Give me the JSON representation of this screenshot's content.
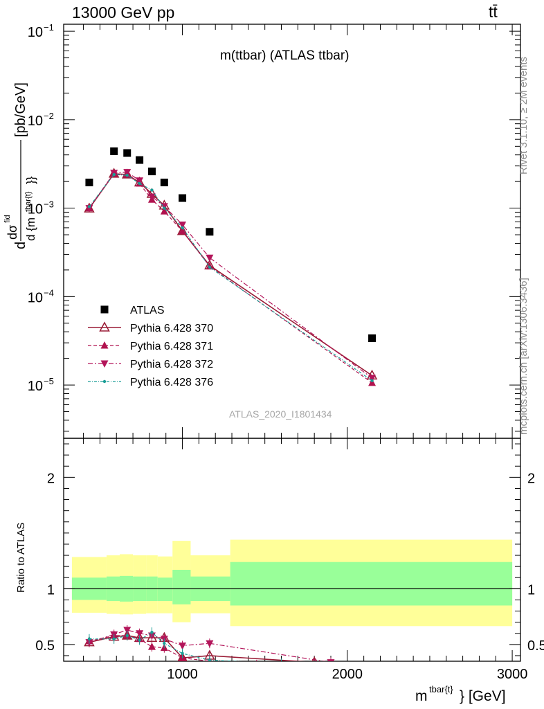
{
  "header": {
    "energy_label": "13000 GeV pp",
    "process_label": "tt̄"
  },
  "side_labels": {
    "rivet": "Rivet 3.1.10, ≥ 2M events",
    "mcplots": "mcplots.cern.ch [arXiv:1306.3436]"
  },
  "colors": {
    "atlas": "#000000",
    "py370": "#9a1c36",
    "py371": "#b0124e",
    "py372": "#b3155a",
    "py376": "#1a9e96",
    "band_inner": "#99ff99",
    "band_outer": "#ffff99"
  },
  "chart_data": [
    {
      "type": "scatter",
      "title": "m(ttbar) (ATLAS ttbar)",
      "analysis_id": "ATLAS_2020_I1801434",
      "ylabel": "dσ^fid / d{m^tbar{t}} [pb/GeV]",
      "yscale": "log",
      "ylim": [
        2.5e-06,
        0.12
      ],
      "xlim": [
        280,
        3050
      ],
      "ytick_labels": [
        "10^-5",
        "10^-4",
        "10^-3",
        "10^-2",
        "10^-1"
      ],
      "legend": {
        "position": "bottom-left",
        "entries": [
          "ATLAS",
          "Pythia 6.428 370",
          "Pythia 6.428 371",
          "Pythia 6.428 372",
          "Pythia 6.428 376"
        ]
      },
      "series": [
        {
          "name": "ATLAS",
          "style": "square",
          "x": [
            435,
            585,
            665,
            740,
            815,
            890,
            1000,
            1165,
            2150
          ],
          "y": [
            0.00195,
            0.0044,
            0.0042,
            0.0035,
            0.0026,
            0.00195,
            0.0013,
            0.00054,
            3.38e-05
          ]
        },
        {
          "name": "Pythia 6.428 370",
          "style": "open-triangle-up",
          "x": [
            435,
            585,
            665,
            740,
            815,
            890,
            1000,
            1165,
            2150
          ],
          "y": [
            0.00099,
            0.00245,
            0.0024,
            0.00195,
            0.00145,
            0.00107,
            0.00055,
            0.000225,
            1.28e-05
          ]
        },
        {
          "name": "Pythia 6.428 371",
          "style": "filled-triangle-up",
          "x": [
            435,
            585,
            665,
            740,
            815,
            890,
            1000,
            1165,
            2150
          ],
          "y": [
            0.001,
            0.00245,
            0.0024,
            0.0019,
            0.00125,
            0.00092,
            0.00055,
            0.00022,
            1.06e-05
          ]
        },
        {
          "name": "Pythia 6.428 372",
          "style": "filled-triangle-down",
          "x": [
            435,
            585,
            665,
            740,
            815,
            890,
            1000,
            1165,
            2150
          ],
          "y": [
            0.001,
            0.0025,
            0.00255,
            0.00205,
            0.00135,
            0.00105,
            0.00065,
            0.000275,
            1.2e-05
          ]
        },
        {
          "name": "Pythia 6.428 376",
          "style": "dot",
          "x": [
            435,
            585,
            665,
            740,
            815,
            890,
            1000,
            1165,
            2150
          ],
          "y": [
            0.00104,
            0.0024,
            0.00235,
            0.0019,
            0.0016,
            0.001,
            0.0006,
            0.000215,
            1.12e-05
          ]
        }
      ]
    },
    {
      "type": "scatter",
      "ylabel": "Ratio to ATLAS",
      "xlabel": "m^tbar{t} [GeV]",
      "ylim": [
        0.35,
        2.35
      ],
      "xlim": [
        280,
        3050
      ],
      "xtick_labels": [
        "1000",
        "2000",
        "3000"
      ],
      "ytick_labels": [
        "0.5",
        "1",
        "2"
      ],
      "bands": [
        {
          "x0": 330,
          "x1": 540,
          "outer": [
            0.785,
            1.285
          ],
          "inner": [
            0.9,
            1.1
          ]
        },
        {
          "x0": 540,
          "x1": 620,
          "outer": [
            0.775,
            1.3
          ],
          "inner": [
            0.89,
            1.11
          ]
        },
        {
          "x0": 620,
          "x1": 700,
          "outer": [
            0.77,
            1.31
          ],
          "inner": [
            0.885,
            1.115
          ]
        },
        {
          "x0": 700,
          "x1": 780,
          "outer": [
            0.775,
            1.3
          ],
          "inner": [
            0.89,
            1.11
          ]
        },
        {
          "x0": 780,
          "x1": 850,
          "outer": [
            0.78,
            1.3
          ],
          "inner": [
            0.89,
            1.11
          ]
        },
        {
          "x0": 850,
          "x1": 940,
          "outer": [
            0.78,
            1.29
          ],
          "inner": [
            0.89,
            1.1
          ]
        },
        {
          "x0": 940,
          "x1": 1050,
          "outer": [
            0.7,
            1.43
          ],
          "inner": [
            0.86,
            1.17
          ]
        },
        {
          "x0": 1050,
          "x1": 1290,
          "outer": [
            0.78,
            1.3
          ],
          "inner": [
            0.89,
            1.11
          ]
        },
        {
          "x0": 1290,
          "x1": 3000,
          "outer": [
            0.665,
            1.44
          ],
          "inner": [
            0.85,
            1.24
          ]
        }
      ],
      "series": [
        {
          "name": "Pythia 6.428 370",
          "x": [
            435,
            585,
            665,
            740,
            815,
            890,
            1000,
            1165,
            1800
          ],
          "y": [
            0.52,
            0.57,
            0.58,
            0.56,
            0.56,
            0.56,
            0.38,
            0.4,
            0.34
          ]
        },
        {
          "name": "Pythia 6.428 371",
          "x": [
            435,
            585,
            665,
            740,
            815,
            890,
            1000,
            1165,
            1450
          ],
          "y": [
            0.53,
            0.58,
            0.58,
            0.55,
            0.48,
            0.47,
            0.38,
            0.35,
            0.32
          ]
        },
        {
          "name": "Pythia 6.428 372",
          "x": [
            435,
            585,
            665,
            740,
            815,
            890,
            1000,
            1165,
            1900
          ],
          "y": [
            0.52,
            0.59,
            0.63,
            0.6,
            0.58,
            0.55,
            0.49,
            0.51,
            0.34
          ]
        },
        {
          "name": "Pythia 6.428 376",
          "x": [
            435,
            585,
            665,
            740,
            815,
            890,
            1000,
            1165,
            1600
          ],
          "y": [
            0.55,
            0.55,
            0.58,
            0.54,
            0.61,
            0.51,
            0.42,
            0.36,
            0.33
          ]
        }
      ]
    }
  ]
}
